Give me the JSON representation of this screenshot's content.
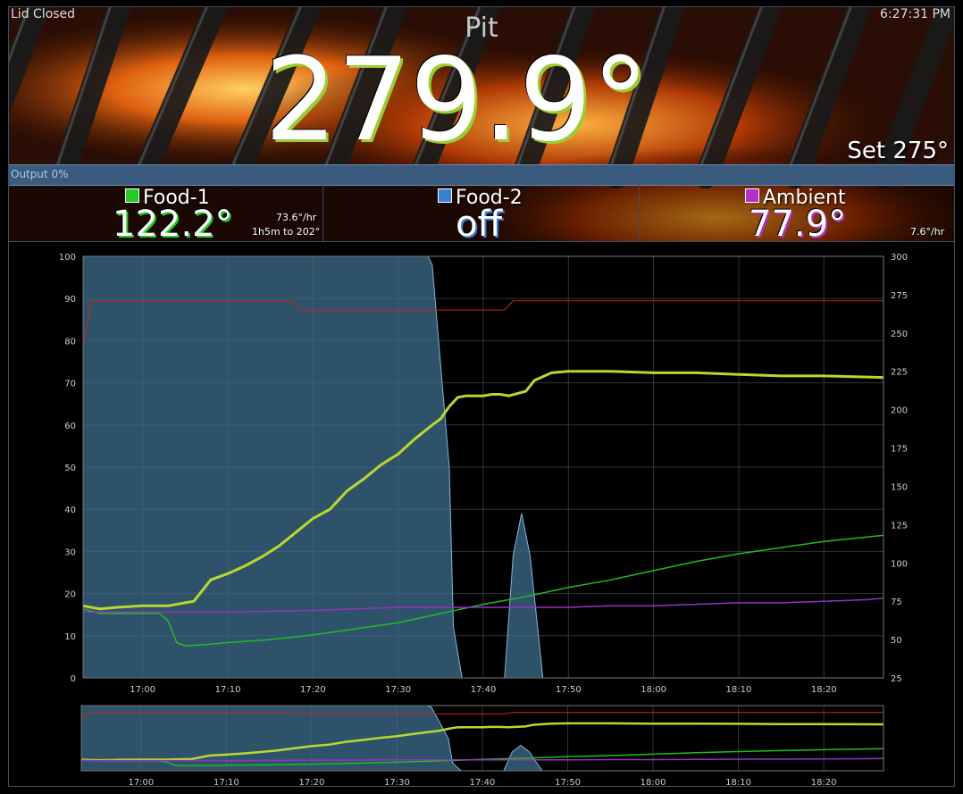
{
  "status": {
    "lid": "Lid Closed",
    "clock": "6:27:31 PM"
  },
  "pit": {
    "label": "Pit",
    "temp": "279.9°",
    "set": "Set 275°"
  },
  "output": {
    "label": "Output 0%",
    "percent": 0
  },
  "probes": [
    {
      "name": "Food-1",
      "temp": "122.2°",
      "rate": "73.6°/hr",
      "eta": "1h5m to 202°",
      "color": "#22cc22",
      "shadow": "#22cc22"
    },
    {
      "name": "Food-2",
      "temp": "off",
      "rate": "",
      "eta": "",
      "color": "#3b7fd4",
      "shadow": "#3b7fd4"
    },
    {
      "name": "Ambient",
      "temp": "77.9°",
      "rate": "7.6°/hr",
      "eta": "",
      "color": "#b030c8",
      "shadow": "#b030c8"
    }
  ],
  "chart_data": {
    "type": "line",
    "x_ticks": [
      "17:00",
      "17:10",
      "17:20",
      "17:30",
      "17:40",
      "17:50",
      "18:00",
      "18:10",
      "18:20"
    ],
    "x_range_minutes": [
      -7,
      87
    ],
    "x_tick_minutes": [
      0,
      10,
      20,
      30,
      40,
      50,
      60,
      70,
      80
    ],
    "y_left": {
      "range": [
        0,
        100
      ],
      "ticks": [
        "0",
        "10",
        "20",
        "30",
        "40",
        "50",
        "60",
        "70",
        "80",
        "90",
        "100"
      ]
    },
    "y_right": {
      "range": [
        25,
        300
      ],
      "ticks": [
        "25",
        "50",
        "75",
        "100",
        "125",
        "150",
        "175",
        "200",
        "225",
        "250",
        "275",
        "300"
      ]
    },
    "grid": true,
    "series": [
      {
        "axis": "left",
        "kind": "area",
        "color": "#7fb8d8",
        "points": [
          [
            -7,
            100
          ],
          [
            33.5,
            100
          ],
          [
            34,
            98
          ],
          [
            36,
            50
          ],
          [
            36.5,
            12
          ],
          [
            37.5,
            0
          ],
          [
            42.5,
            0
          ],
          [
            43.5,
            29
          ],
          [
            44.5,
            39
          ],
          [
            45.5,
            29
          ],
          [
            47,
            0
          ],
          [
            87,
            0
          ]
        ]
      },
      {
        "axis": "right",
        "kind": "line",
        "color": "#cc2222",
        "points": [
          [
            -7,
            240
          ],
          [
            -6,
            271
          ],
          [
            17.5,
            271
          ],
          [
            18.5,
            265
          ],
          [
            42.5,
            265
          ],
          [
            43.5,
            271
          ],
          [
            87,
            271
          ]
        ]
      },
      {
        "axis": "right",
        "kind": "line",
        "color": "#b8d830",
        "points": [
          [
            -7,
            72
          ],
          [
            -5,
            70
          ],
          [
            -3,
            71
          ],
          [
            0,
            72
          ],
          [
            3,
            72
          ],
          [
            5,
            74
          ],
          [
            6,
            75
          ],
          [
            8,
            89
          ],
          [
            10,
            93
          ],
          [
            12,
            98
          ],
          [
            14,
            104
          ],
          [
            16,
            111
          ],
          [
            18,
            120
          ],
          [
            20,
            129
          ],
          [
            22,
            135
          ],
          [
            24,
            147
          ],
          [
            26,
            155
          ],
          [
            28,
            164
          ],
          [
            30,
            171
          ],
          [
            32,
            181
          ],
          [
            34,
            190
          ],
          [
            35,
            194
          ],
          [
            36,
            202
          ],
          [
            37,
            208
          ],
          [
            38,
            209
          ],
          [
            40,
            209
          ],
          [
            41,
            210
          ],
          [
            42,
            210
          ],
          [
            43,
            209
          ],
          [
            45,
            212
          ],
          [
            46,
            219
          ],
          [
            48,
            224
          ],
          [
            50,
            225
          ],
          [
            55,
            225
          ],
          [
            60,
            224
          ],
          [
            65,
            224
          ],
          [
            70,
            223
          ],
          [
            75,
            222
          ],
          [
            80,
            222
          ],
          [
            87,
            221
          ]
        ]
      },
      {
        "axis": "right",
        "kind": "line",
        "color": "#22bb22",
        "points": [
          [
            -7,
            70
          ],
          [
            -5,
            67
          ],
          [
            -2,
            67
          ],
          [
            2,
            67
          ],
          [
            3,
            62
          ],
          [
            4,
            48
          ],
          [
            5,
            46
          ],
          [
            8,
            47
          ],
          [
            10,
            48
          ],
          [
            15,
            50
          ],
          [
            20,
            53
          ],
          [
            25,
            57
          ],
          [
            30,
            61
          ],
          [
            35,
            67
          ],
          [
            40,
            73
          ],
          [
            45,
            78
          ],
          [
            50,
            84
          ],
          [
            55,
            89
          ],
          [
            60,
            95
          ],
          [
            65,
            101
          ],
          [
            70,
            106
          ],
          [
            75,
            110
          ],
          [
            80,
            114
          ],
          [
            87,
            118
          ]
        ]
      },
      {
        "axis": "right",
        "kind": "line",
        "color": "#9b30c0",
        "points": [
          [
            -7,
            68
          ],
          [
            10,
            68
          ],
          [
            20,
            69
          ],
          [
            30,
            71
          ],
          [
            40,
            71
          ],
          [
            50,
            71
          ],
          [
            55,
            72
          ],
          [
            60,
            72
          ],
          [
            65,
            73
          ],
          [
            70,
            74
          ],
          [
            75,
            74
          ],
          [
            80,
            75
          ],
          [
            85,
            76
          ],
          [
            87,
            77
          ]
        ]
      }
    ]
  }
}
